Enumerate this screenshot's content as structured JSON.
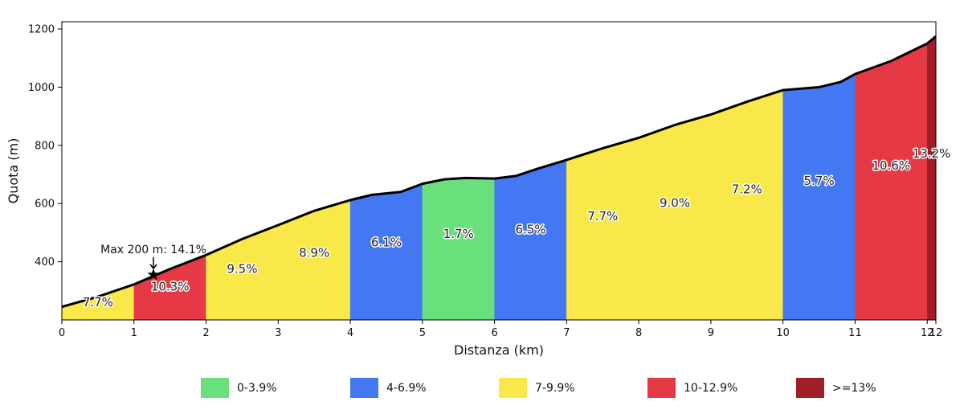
{
  "chart_data": {
    "type": "area",
    "xlabel": "Distanza (km)",
    "ylabel": "Quota (m)",
    "xlim": [
      0,
      12.12
    ],
    "ylim": [
      200,
      1225
    ],
    "x_ticks": [
      0,
      1,
      2,
      3,
      4,
      5,
      6,
      7,
      8,
      9,
      10,
      11,
      12,
      12.12
    ],
    "x_tick_labels": [
      "0",
      "1",
      "2",
      "3",
      "4",
      "5",
      "6",
      "7",
      "8",
      "9",
      "10",
      "11",
      "12",
      "12"
    ],
    "y_ticks": [
      400,
      600,
      800,
      1000,
      1200
    ],
    "y_tick_labels": [
      "400",
      "600",
      "800",
      "1000",
      "1200"
    ],
    "profile": [
      [
        0,
        245
      ],
      [
        0.5,
        280
      ],
      [
        1,
        322
      ],
      [
        1.5,
        375
      ],
      [
        2,
        423
      ],
      [
        2.5,
        478
      ],
      [
        3,
        526
      ],
      [
        3.5,
        575
      ],
      [
        4,
        612
      ],
      [
        4.3,
        630
      ],
      [
        4.7,
        640
      ],
      [
        5,
        668
      ],
      [
        5.3,
        683
      ],
      [
        5.6,
        688
      ],
      [
        6,
        686
      ],
      [
        6.3,
        695
      ],
      [
        6.6,
        720
      ],
      [
        7,
        750
      ],
      [
        7.5,
        790
      ],
      [
        8,
        826
      ],
      [
        8.5,
        870
      ],
      [
        9,
        906
      ],
      [
        9.5,
        950
      ],
      [
        10,
        990
      ],
      [
        10.5,
        1000
      ],
      [
        10.8,
        1018
      ],
      [
        11,
        1045
      ],
      [
        11.5,
        1090
      ],
      [
        12,
        1150
      ],
      [
        12.12,
        1175
      ]
    ],
    "segments": [
      {
        "start": 0,
        "end": 1,
        "gradient": 7.7,
        "label": "7.7%",
        "color": "#f9e84a"
      },
      {
        "start": 1,
        "end": 2,
        "gradient": 10.3,
        "label": "10.3%",
        "color": "#e63946"
      },
      {
        "start": 2,
        "end": 3,
        "gradient": 9.5,
        "label": "9.5%",
        "color": "#f9e84a"
      },
      {
        "start": 3,
        "end": 4,
        "gradient": 8.9,
        "label": "8.9%",
        "color": "#f9e84a"
      },
      {
        "start": 4,
        "end": 5,
        "gradient": 6.1,
        "label": "6.1%",
        "color": "#4477f2"
      },
      {
        "start": 5,
        "end": 6,
        "gradient": 1.7,
        "label": "1.7%",
        "color": "#69e07c"
      },
      {
        "start": 6,
        "end": 7,
        "gradient": 6.5,
        "label": "6.5%",
        "color": "#4477f2"
      },
      {
        "start": 7,
        "end": 8,
        "gradient": 7.7,
        "label": "7.7%",
        "color": "#f9e84a"
      },
      {
        "start": 8,
        "end": 9,
        "gradient": 9.0,
        "label": "9.0%",
        "color": "#f9e84a"
      },
      {
        "start": 9,
        "end": 10,
        "gradient": 7.2,
        "label": "7.2%",
        "color": "#f9e84a"
      },
      {
        "start": 10,
        "end": 11,
        "gradient": 5.7,
        "label": "5.7%",
        "color": "#4477f2"
      },
      {
        "start": 11,
        "end": 12,
        "gradient": 10.6,
        "label": "10.6%",
        "color": "#e63946"
      },
      {
        "start": 12,
        "end": 12.12,
        "gradient": 13.2,
        "label": "13.2%",
        "color": "#a01f27"
      }
    ],
    "annotation": {
      "text": "Max 200 m: 14.1%",
      "x": 1.27,
      "y": 355
    },
    "legend": {
      "placement": "bottom",
      "entries": [
        {
          "label": "0-3.9%",
          "color": "#69e07c"
        },
        {
          "label": "4-6.9%",
          "color": "#4477f2"
        },
        {
          "label": "7-9.9%",
          "color": "#f9e84a"
        },
        {
          "label": "10-12.9%",
          "color": "#e63946"
        },
        {
          "label": ">=13%",
          "color": "#a01f27"
        }
      ]
    }
  }
}
